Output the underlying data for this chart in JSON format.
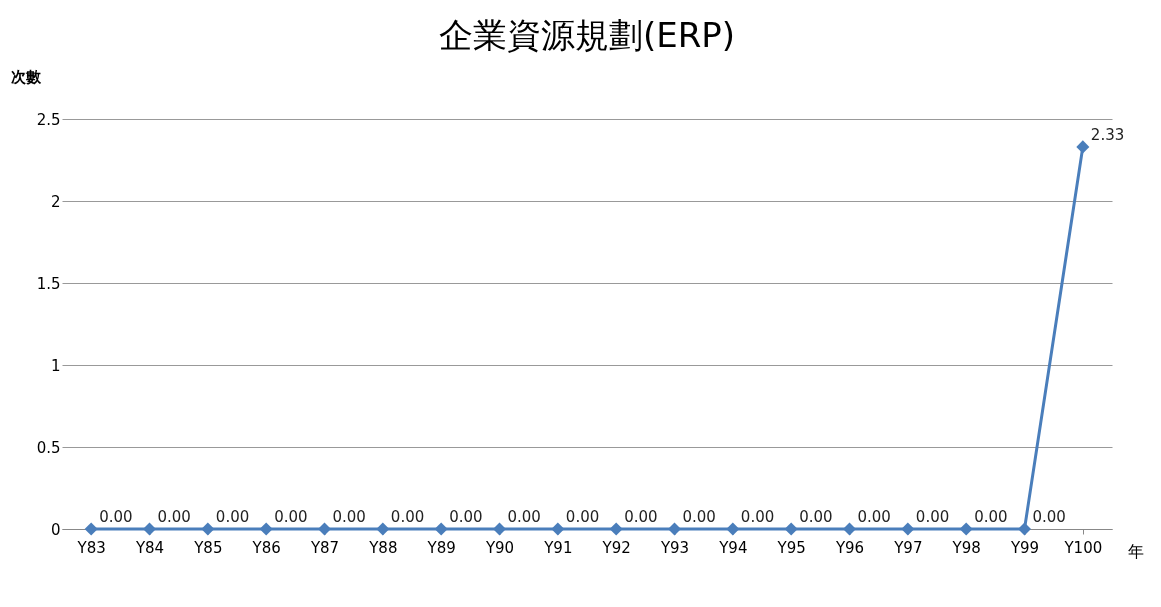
{
  "chart_data": {
    "type": "line",
    "title": "企業資源規劃(ERP)",
    "ylabel": "次數",
    "xlabel": "年",
    "categories": [
      "Y83",
      "Y84",
      "Y85",
      "Y86",
      "Y87",
      "Y88",
      "Y89",
      "Y90",
      "Y91",
      "Y92",
      "Y93",
      "Y94",
      "Y95",
      "Y96",
      "Y97",
      "Y98",
      "Y99",
      "Y100"
    ],
    "series": [
      {
        "color": "#4a7ebb",
        "values": [
          0,
          0,
          0,
          0,
          0,
          0,
          0,
          0,
          0,
          0,
          0,
          0,
          0,
          0,
          0,
          0,
          0,
          2.33
        ],
        "value_labels": [
          "0.00",
          "0.00",
          "0.00",
          "0.00",
          "0.00",
          "0.00",
          "0.00",
          "0.00",
          "0.00",
          "0.00",
          "0.00",
          "0.00",
          "0.00",
          "0.00",
          "0.00",
          "0.00",
          "0.00",
          "2.33"
        ]
      }
    ],
    "ylim": [
      0,
      2.5
    ],
    "yticks": [
      0,
      0.5,
      1,
      1.5,
      2,
      2.5
    ],
    "grid": "y",
    "marker": "diamond",
    "line_style": "solid",
    "legend": false
  }
}
